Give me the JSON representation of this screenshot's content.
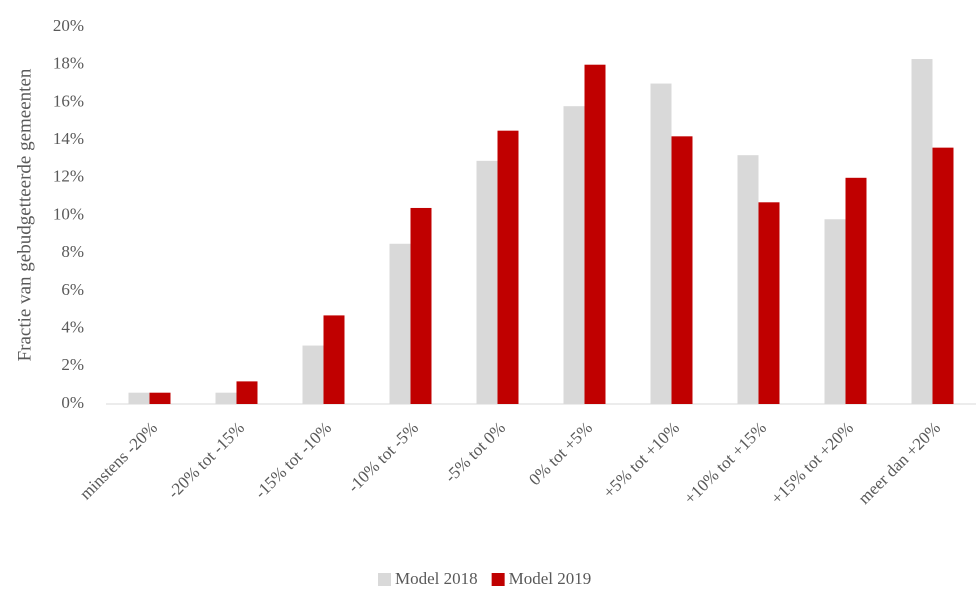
{
  "chart_data": {
    "type": "bar",
    "y_label": "Fractie van gebudgetteerde gemeenten",
    "categories": [
      "minstens -20%",
      "-20% tot -15%",
      "-15% tot -10%",
      "-10% tot -5%",
      "-5% tot 0%",
      "0% tot +5%",
      "+5% tot +10%",
      "+10% tot +15%",
      "+15% tot +20%",
      "meer dan +20%"
    ],
    "series": [
      {
        "name": "Model 2018",
        "color": "#d9d9d9",
        "values": [
          0.6,
          0.6,
          3.1,
          8.5,
          12.9,
          15.8,
          17.0,
          13.2,
          9.8,
          18.3
        ]
      },
      {
        "name": "Model 2019",
        "color": "#c00000",
        "values": [
          0.6,
          1.2,
          4.7,
          10.4,
          14.5,
          18.0,
          14.2,
          10.7,
          12.0,
          13.6
        ]
      }
    ],
    "ylim": [
      0,
      20
    ],
    "yticks": [
      {
        "value": 0,
        "label": "0%"
      },
      {
        "value": 2,
        "label": "2%"
      },
      {
        "value": 4,
        "label": "4%"
      },
      {
        "value": 6,
        "label": "6%"
      },
      {
        "value": 8,
        "label": "8%"
      },
      {
        "value": 10,
        "label": "10%"
      },
      {
        "value": 12,
        "label": "12%"
      },
      {
        "value": 14,
        "label": "14%"
      },
      {
        "value": 16,
        "label": "16%"
      },
      {
        "value": 18,
        "label": "18%"
      },
      {
        "value": 20,
        "label": "20%"
      }
    ],
    "grid": false,
    "legend": "bottom"
  }
}
